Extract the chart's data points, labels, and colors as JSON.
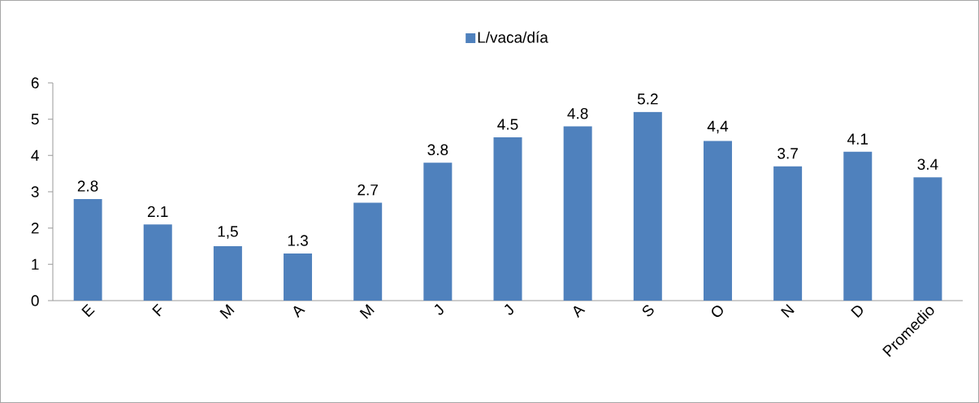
{
  "chart_data": {
    "type": "bar",
    "categories": [
      "E",
      "F",
      "M",
      "A",
      "M",
      "J",
      "J",
      "A",
      "S",
      "O",
      "N",
      "D",
      "Promedio"
    ],
    "series": [
      {
        "name": "L/vaca/día",
        "color": "#4f81bd",
        "values": [
          2.8,
          2.1,
          1.5,
          1.3,
          2.7,
          3.8,
          4.5,
          4.8,
          5.2,
          4.4,
          3.7,
          4.1,
          3.4
        ],
        "value_labels": [
          "2.8",
          "2.1",
          "1,5",
          "1.3",
          "2.7",
          "3.8",
          "4.5",
          "4.8",
          "5.2",
          "4,4",
          "3.7",
          "4.1",
          "3.4"
        ]
      }
    ],
    "ylim": [
      0,
      6
    ],
    "yticks": [
      0,
      1,
      2,
      3,
      4,
      5,
      6
    ],
    "legend": "top"
  }
}
